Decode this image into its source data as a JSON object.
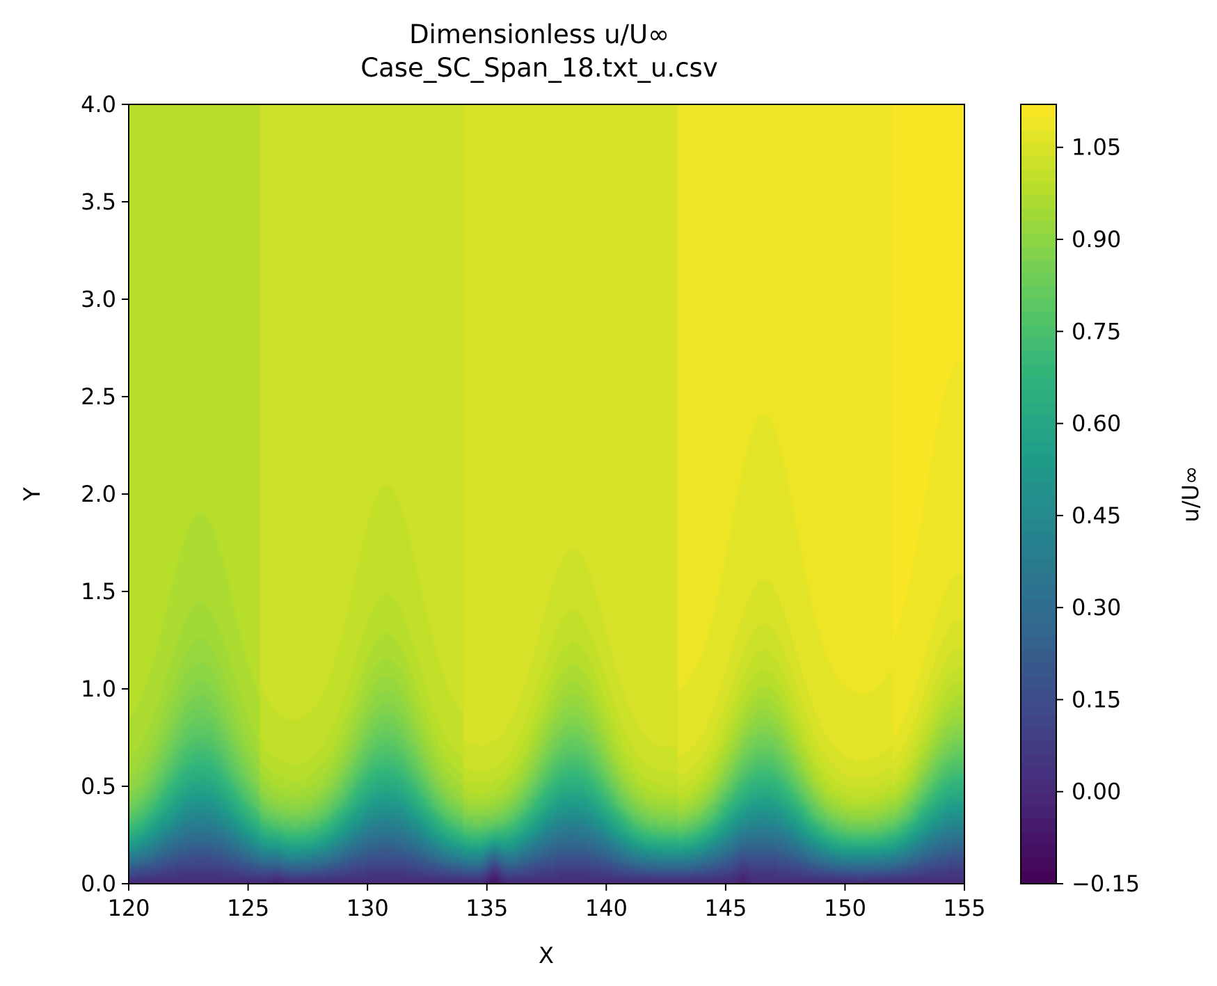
{
  "chart_data": {
    "type": "heatmap",
    "title": "Dimensionless u/U∞",
    "subtitle": "Case_SC_Span_18.txt_u.csv",
    "xlabel": "X",
    "ylabel": "Y",
    "xlim": [
      120,
      155
    ],
    "ylim": [
      0,
      4
    ],
    "x_ticks": [
      "120",
      "125",
      "130",
      "135",
      "140",
      "145",
      "150",
      "155"
    ],
    "y_ticks": [
      "0.0",
      "0.5",
      "1.0",
      "1.5",
      "2.0",
      "2.5",
      "3.0",
      "3.5",
      "4.0"
    ],
    "colorbar": {
      "label": "u/U∞",
      "range": [
        -0.15,
        1.12
      ],
      "ticks": [
        "−0.15",
        "0.00",
        "0.15",
        "0.30",
        "0.45",
        "0.60",
        "0.75",
        "0.90",
        "1.05"
      ],
      "colormap": "viridis",
      "levels": 60
    },
    "field_description": {
      "crests_x": [
        123,
        130.8,
        138.6,
        146.6,
        154.8
      ],
      "free_stream_bands": [
        {
          "x": [
            120,
            125.5
          ],
          "value": 0.98
        },
        {
          "x": [
            125.5,
            134
          ],
          "value": 1.02
        },
        {
          "x": [
            134,
            143
          ],
          "value": 1.05
        },
        {
          "x": [
            143,
            152
          ],
          "value": 1.08
        },
        {
          "x": [
            152,
            155
          ],
          "value": 1.1
        }
      ],
      "near_wall_minimum": {
        "x": 135.3,
        "y": 0.1,
        "value": -0.12
      }
    },
    "grid": false,
    "colors": {
      "viridis": [
        "#440154",
        "#482878",
        "#3e4989",
        "#31688e",
        "#26828e",
        "#1f9e89",
        "#35b779",
        "#6ece58",
        "#b5de2b",
        "#fde725"
      ]
    }
  }
}
